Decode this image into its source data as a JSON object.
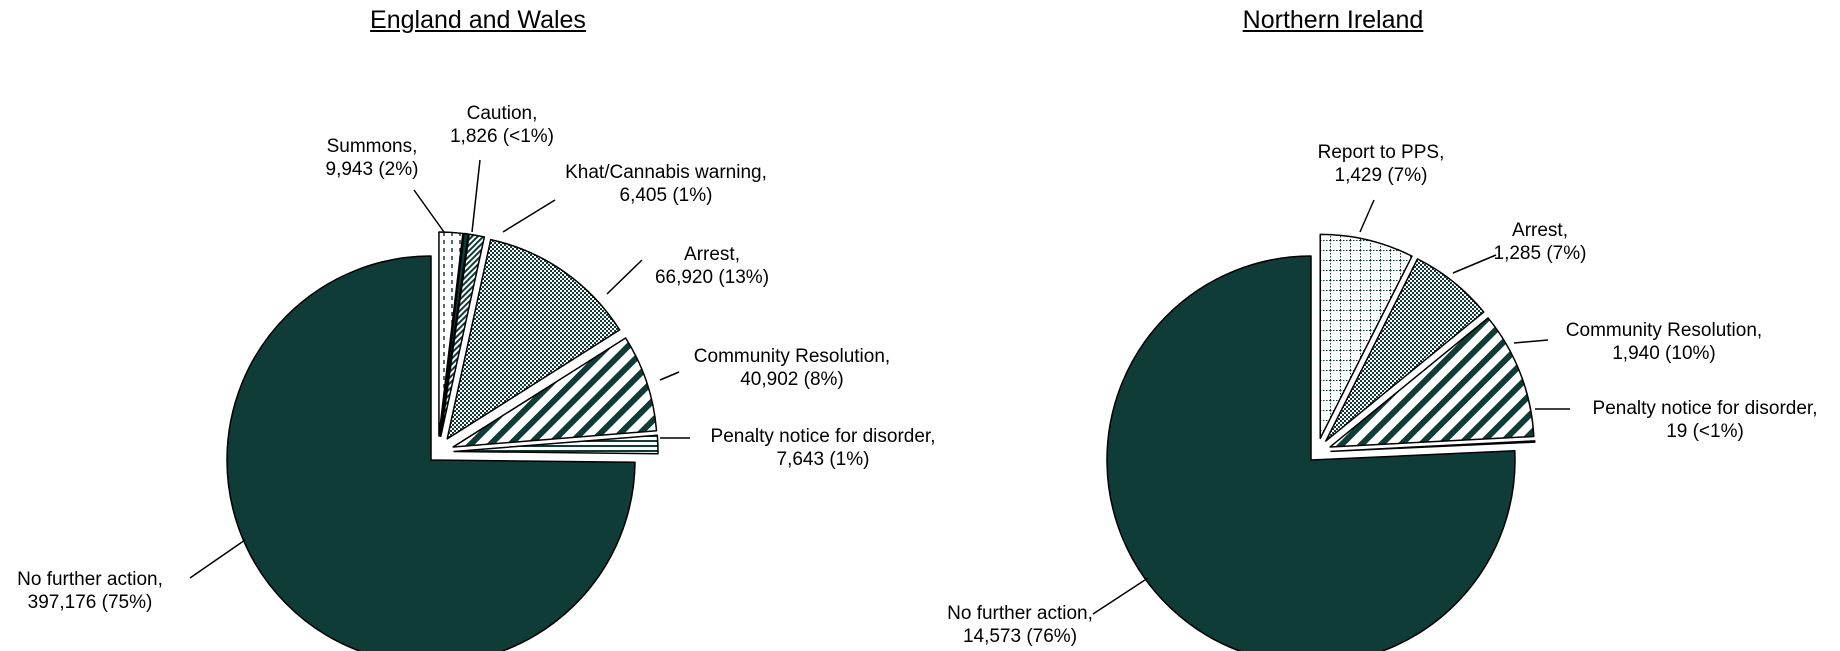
{
  "chart_data": [
    {
      "type": "pie",
      "title": "England and Wales",
      "slices": [
        {
          "name": "No further action",
          "count": "397,176",
          "pct": "75%",
          "value": 397176,
          "pattern": "solid"
        },
        {
          "name": "Summons",
          "count": "9,943",
          "pct": "2%",
          "value": 9943,
          "pattern": "dashed"
        },
        {
          "name": "Caution",
          "count": "1,826",
          "pct": "<1%",
          "value": 1826,
          "pattern": "solid"
        },
        {
          "name": "Khat/Cannabis warning",
          "count": "6,405",
          "pct": "1%",
          "value": 6405,
          "pattern": "hatch-dense"
        },
        {
          "name": "Arrest",
          "count": "66,920",
          "pct": "13%",
          "value": 66920,
          "pattern": "dots"
        },
        {
          "name": "Community Resolution",
          "count": "40,902",
          "pct": "8%",
          "value": 40902,
          "pattern": "diagonal"
        },
        {
          "name": "Penalty notice for disorder",
          "count": "7,643",
          "pct": "1%",
          "value": 7643,
          "pattern": "horizontal"
        }
      ]
    },
    {
      "type": "pie",
      "title": "Northern Ireland",
      "slices": [
        {
          "name": "No further action",
          "count": "14,573",
          "pct": "76%",
          "value": 14573,
          "pattern": "solid"
        },
        {
          "name": "Report to PPS",
          "count": "1,429",
          "pct": "7%",
          "value": 1429,
          "pattern": "grid"
        },
        {
          "name": "Arrest",
          "count": "1,285",
          "pct": "7%",
          "value": 1285,
          "pattern": "dots"
        },
        {
          "name": "Community Resolution",
          "count": "1,940",
          "pct": "10%",
          "value": 1940,
          "pattern": "diagonal"
        },
        {
          "name": "Penalty notice for disorder",
          "count": "19",
          "pct": "<1%",
          "value": 19,
          "pattern": "horizontal"
        }
      ]
    }
  ],
  "colors": {
    "main": "#103c37",
    "outline": "#000000",
    "background": "#ffffff"
  }
}
